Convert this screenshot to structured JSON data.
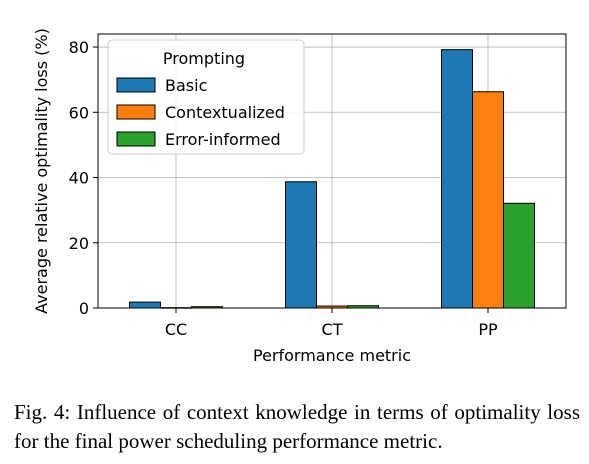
{
  "chart_data": {
    "type": "bar",
    "categories": [
      "CC",
      "CT",
      "PP"
    ],
    "series": [
      {
        "name": "Basic",
        "color": "#1f77b4",
        "values": [
          1.8,
          38.7,
          79.2
        ]
      },
      {
        "name": "Contextualized",
        "color": "#ff7f0e",
        "values": [
          0.1,
          0.6,
          66.3
        ]
      },
      {
        "name": "Error-informed",
        "color": "#2ca02c",
        "values": [
          0.4,
          0.7,
          32.1
        ]
      }
    ],
    "xlabel": "Performance metric",
    "ylabel": "Average relative optimality loss (%)",
    "ylim": [
      0,
      84
    ],
    "yticks": [
      0,
      20,
      40,
      60,
      80
    ],
    "grid": true,
    "legend": {
      "title": "Prompting",
      "placement": "top-left"
    }
  },
  "caption": "Fig. 4: Influence of context knowledge in terms of optimality loss for the final power scheduling performance metric."
}
